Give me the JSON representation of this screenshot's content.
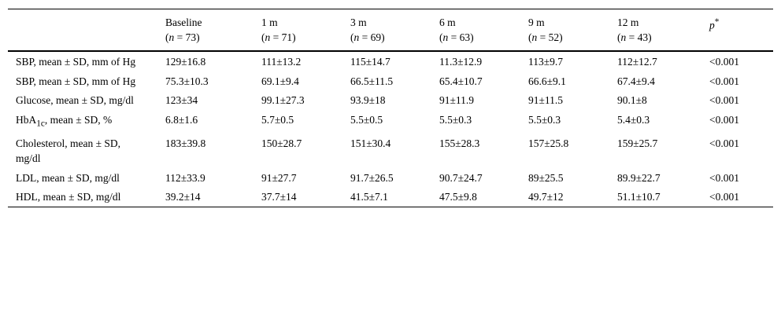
{
  "table": {
    "columns": [
      {
        "title": "Baseline",
        "open": "(",
        "symbol": "n",
        "rest": "= 73)"
      },
      {
        "title": "1 m",
        "open": "(",
        "symbol": "n",
        "rest": "= 71)"
      },
      {
        "title": "3 m",
        "open": "(",
        "symbol": "n",
        "rest": "= 69)"
      },
      {
        "title": "6 m",
        "open": "(",
        "symbol": "n",
        "rest": "= 63)"
      },
      {
        "title": "9 m",
        "open": "(",
        "symbol": "n",
        "rest": "= 52)"
      },
      {
        "title": "12 m",
        "open": "(",
        "symbol": "n",
        "rest": "= 43)"
      }
    ],
    "p_header": {
      "text": "p",
      "sup": "*"
    },
    "rows": [
      {
        "label": "SBP, mean ± SD, mm of Hg",
        "cells": [
          "129±16.8",
          "111±13.2",
          "115±14.7",
          "11.3±12.9",
          "113±9.7",
          "112±12.7",
          "<0.001"
        ]
      },
      {
        "label": "SBP, mean ± SD, mm of Hg",
        "cells": [
          "75.3±10.3",
          "69.1±9.4",
          "66.5±11.5",
          "65.4±10.7",
          "66.6±9.1",
          "67.4±9.4",
          "<0.001"
        ]
      },
      {
        "label": "Glucose, mean ± SD, mg/dl",
        "cells": [
          "123±34",
          "99.1±27.3",
          "93.9±18",
          "91±11.9",
          "91±11.5",
          "90.1±8",
          "<0.001"
        ]
      },
      {
        "label": "HbA",
        "label_sub": "1c",
        "label_rest": ", mean ± SD, %",
        "cells": [
          "6.8±1.6",
          "5.7±0.5",
          "5.5±0.5",
          "5.5±0.3",
          "5.5±0.3",
          "5.4±0.3",
          "<0.001"
        ]
      },
      {
        "label": "Cholesterol, mean ± SD, mg/dl",
        "cells": [
          "183±39.8",
          "150±28.7",
          "151±30.4",
          "155±28.3",
          "157±25.8",
          "159±25.7",
          "<0.001"
        ]
      },
      {
        "label": "LDL, mean ± SD, mg/dl",
        "cells": [
          "112±33.9",
          "91±27.7",
          "91.7±26.5",
          "90.7±24.7",
          "89±25.5",
          "89.9±22.7",
          "<0.001"
        ]
      },
      {
        "label": "HDL, mean ± SD, mg/dl",
        "cells": [
          "39.2±14",
          "37.7±14",
          "41.5±7.1",
          "47.5±9.8",
          "49.7±12",
          "51.1±10.7",
          "<0.001"
        ]
      }
    ]
  }
}
